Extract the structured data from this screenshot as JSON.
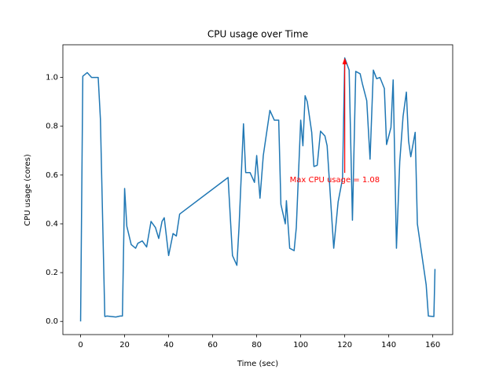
{
  "chart_data": {
    "type": "line",
    "title": "CPU usage over Time",
    "xlabel": "Time (sec)",
    "ylabel": "CPU usage (cores)",
    "x": [
      0,
      1,
      3,
      5,
      8,
      9,
      11,
      12,
      14,
      16,
      18,
      19,
      20,
      21,
      23,
      25,
      26,
      28,
      30,
      32,
      34,
      35.5,
      37,
      38,
      40,
      42,
      43.5,
      45,
      67,
      69,
      71,
      72,
      74,
      75,
      77,
      79,
      80,
      81.5,
      83,
      86,
      88,
      90,
      91,
      93,
      93.5,
      95,
      97,
      98,
      100,
      101,
      102,
      103,
      105,
      106,
      107.5,
      109,
      111,
      112,
      115,
      117,
      119,
      120,
      122,
      123.5,
      125,
      127,
      128,
      130,
      131.5,
      133,
      134.5,
      136,
      138,
      139,
      141,
      142,
      143.5,
      145,
      146.5,
      148,
      149,
      150,
      152,
      153,
      157,
      158,
      160.5,
      161
    ],
    "series": [
      {
        "name": "CPU usage",
        "color": "#1f77b4",
        "values": [
          0,
          1.005,
          1.02,
          1.0,
          1.0,
          0.83,
          0.02,
          0.022,
          0.02,
          0.018,
          0.022,
          0.022,
          0.545,
          0.39,
          0.315,
          0.3,
          0.32,
          0.33,
          0.305,
          0.41,
          0.385,
          0.34,
          0.41,
          0.425,
          0.27,
          0.36,
          0.35,
          0.44,
          0.59,
          0.27,
          0.23,
          0.39,
          0.81,
          0.61,
          0.61,
          0.57,
          0.68,
          0.505,
          0.68,
          0.865,
          0.825,
          0.825,
          0.48,
          0.4,
          0.495,
          0.3,
          0.29,
          0.385,
          0.825,
          0.72,
          0.925,
          0.9,
          0.775,
          0.635,
          0.64,
          0.78,
          0.76,
          0.72,
          0.3,
          0.49,
          0.585,
          1.08,
          1.03,
          0.415,
          1.025,
          1.015,
          0.975,
          0.905,
          0.665,
          1.03,
          0.995,
          1.0,
          0.955,
          0.725,
          0.795,
          0.99,
          0.3,
          0.655,
          0.84,
          0.94,
          0.74,
          0.675,
          0.775,
          0.4,
          0.15,
          0.022,
          0.02,
          0.215
        ]
      }
    ],
    "xlim": [
      -8.05,
      169.05
    ],
    "ylim": [
      -0.054,
      1.134
    ],
    "xticks": [
      0,
      20,
      40,
      60,
      80,
      100,
      120,
      140,
      160
    ],
    "yticks": [
      {
        "value": 0,
        "label": "0.0"
      },
      0.2,
      0.4,
      0.6,
      0.8,
      {
        "value": 1,
        "label": "1.0"
      }
    ],
    "annotation": {
      "text": "Max CPU usage = 1.08",
      "color": "red",
      "xy": [
        120,
        1.08
      ],
      "xytext": [
        95,
        0.58
      ]
    }
  }
}
